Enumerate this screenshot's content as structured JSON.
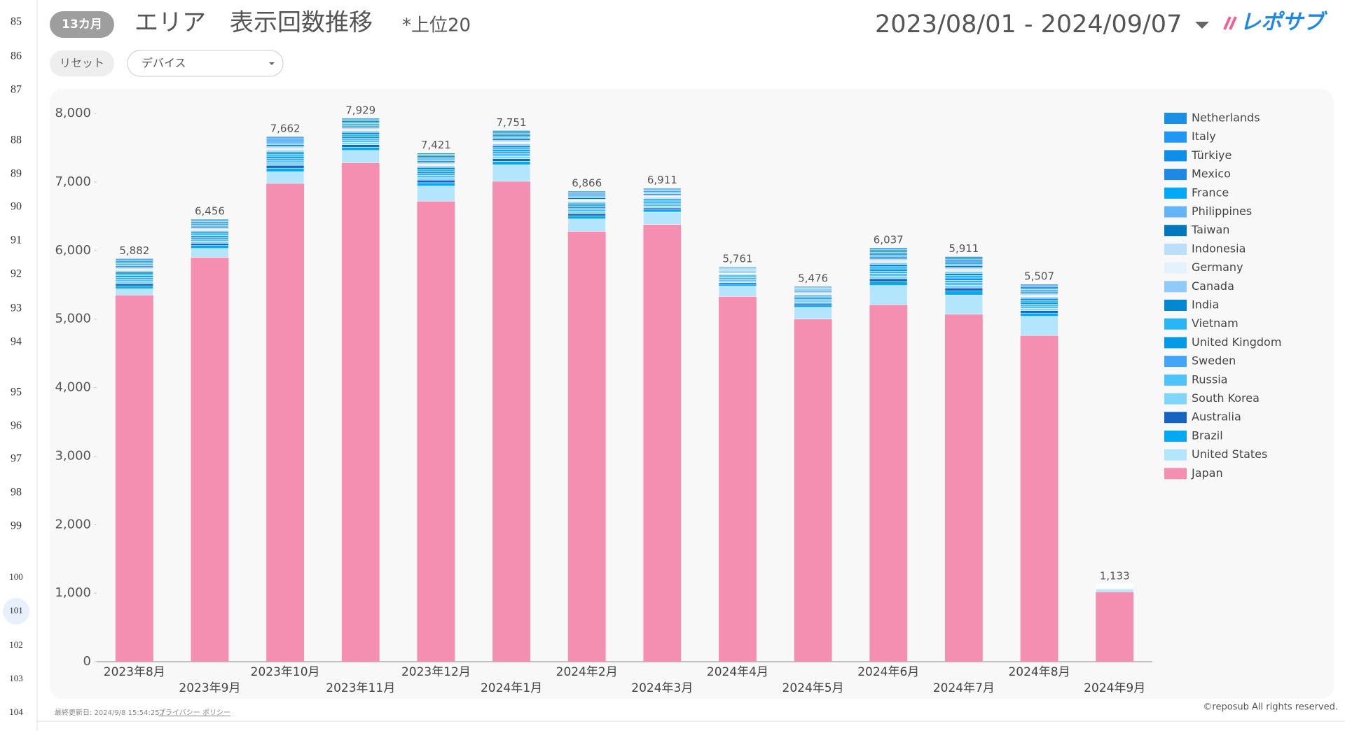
{
  "row_numbers": [
    85,
    86,
    87,
    88,
    89,
    90,
    91,
    92,
    93,
    94,
    95,
    96,
    97,
    98,
    99,
    100,
    101,
    102,
    103,
    104
  ],
  "header": {
    "period": "13カ月",
    "title": "エリア　表示回数推移",
    "note": "*上位20",
    "date_range": "2023/08/01 - 2024/09/07",
    "logo": "レポサブ"
  },
  "controls": {
    "reset": "リセット",
    "device_filter": "デバイス"
  },
  "footer": {
    "last_updated": "最終更新日: 2024/9/8 15:54:25 |",
    "privacy": "プライバシー ポリシー",
    "copyright": "©reposub All rights reserved."
  },
  "chart_data": {
    "type": "stacked_bar",
    "categories": [
      "2023年8月",
      "2023年9月",
      "2023年10月",
      "2023年11月",
      "2023年12月",
      "2024年1月",
      "2024年2月",
      "2024年3月",
      "2024年4月",
      "2024年5月",
      "2024年6月",
      "2024年7月",
      "2024年8月",
      "2024年9月"
    ],
    "ylim": [
      0,
      8000
    ],
    "yticks": [
      0,
      {
        "value": 1000,
        "label": "1,000"
      },
      {
        "value": 2000,
        "label": "2,000"
      },
      {
        "value": 3000,
        "label": "3,000"
      },
      {
        "value": 4000,
        "label": "4,000"
      },
      {
        "value": 5000,
        "label": "5,000"
      },
      {
        "value": 6000,
        "label": "6,000"
      },
      {
        "value": 7000,
        "label": "7,000"
      },
      {
        "value": 8000,
        "label": "8,000"
      }
    ],
    "grid": false,
    "legend": "right",
    "totals": [
      5882,
      6456,
      7662,
      7929,
      7421,
      7751,
      6866,
      6911,
      5761,
      5476,
      6037,
      5911,
      5507,
      1133
    ],
    "total_labels": [
      "5,882",
      "6,456",
      "7,662",
      "7,929",
      "7,421",
      "7,751",
      "6,866",
      "6,911",
      "5,761",
      "5,476",
      "6,037",
      "5,911",
      "5,507",
      "1,133"
    ],
    "series": [
      {
        "name": "Japan",
        "color": "#f48fb1",
        "values": [
          5350,
          5900,
          6980,
          7280,
          6720,
          7010,
          6280,
          6380,
          5330,
          5000,
          5210,
          5070,
          4760,
          1020
        ]
      },
      {
        "name": "United States",
        "color": "#b3e5fc",
        "values": [
          90,
          130,
          170,
          180,
          220,
          240,
          180,
          180,
          150,
          170,
          280,
          280,
          280,
          40
        ]
      },
      {
        "name": "Brazil",
        "color": "#03a9f4",
        "values": [
          41,
          42,
          51,
          47,
          49,
          51,
          46,
          33,
          29,
          36,
          55,
          58,
          46,
          7
        ]
      },
      {
        "name": "Australia",
        "color": "#1565c0",
        "values": [
          35,
          34,
          41,
          38,
          38,
          40,
          32,
          28,
          22,
          24,
          44,
          45,
          37,
          6
        ]
      },
      {
        "name": "South Korea",
        "color": "#81d4fa",
        "values": [
          31,
          30,
          36,
          33,
          34,
          35,
          28,
          25,
          20,
          21,
          38,
          39,
          33,
          5
        ]
      },
      {
        "name": "Russia",
        "color": "#4fc3f7",
        "values": [
          31,
          30,
          36,
          33,
          34,
          35,
          28,
          25,
          20,
          21,
          38,
          39,
          33,
          5
        ]
      },
      {
        "name": "Sweden",
        "color": "#42a5f5",
        "values": [
          27,
          26,
          31,
          28,
          29,
          30,
          24,
          21,
          17,
          18,
          33,
          34,
          28,
          4
        ]
      },
      {
        "name": "United Kingdom",
        "color": "#039be5",
        "values": [
          27,
          26,
          31,
          28,
          29,
          30,
          24,
          21,
          17,
          18,
          33,
          34,
          28,
          4
        ]
      },
      {
        "name": "Vietnam",
        "color": "#29b6f6",
        "values": [
          27,
          26,
          31,
          28,
          29,
          30,
          24,
          21,
          17,
          18,
          33,
          34,
          28,
          4
        ]
      },
      {
        "name": "India",
        "color": "#0288d1",
        "values": [
          27,
          26,
          31,
          28,
          29,
          30,
          24,
          21,
          17,
          18,
          33,
          34,
          28,
          4
        ]
      },
      {
        "name": "Canada",
        "color": "#90caf9",
        "values": [
          22,
          21,
          26,
          23,
          24,
          25,
          20,
          18,
          14,
          15,
          27,
          28,
          23,
          4
        ]
      },
      {
        "name": "Germany",
        "color": "#e3f2fd",
        "values": [
          22,
          21,
          26,
          23,
          24,
          25,
          20,
          18,
          14,
          15,
          27,
          28,
          23,
          4
        ]
      },
      {
        "name": "Indonesia",
        "color": "#bbdefb",
        "values": [
          22,
          21,
          26,
          23,
          24,
          25,
          20,
          18,
          14,
          15,
          27,
          28,
          23,
          4
        ]
      },
      {
        "name": "Taiwan",
        "color": "#0277bd",
        "values": [
          22,
          21,
          26,
          23,
          24,
          25,
          20,
          18,
          14,
          15,
          27,
          28,
          23,
          4
        ]
      },
      {
        "name": "Philippines",
        "color": "#64b5f6",
        "values": [
          18,
          17,
          20,
          19,
          19,
          20,
          16,
          14,
          11,
          12,
          22,
          22,
          19,
          3
        ]
      },
      {
        "name": "France",
        "color": "#03a9f4",
        "values": [
          18,
          17,
          20,
          19,
          19,
          20,
          16,
          14,
          11,
          12,
          22,
          22,
          19,
          3
        ]
      },
      {
        "name": "Mexico",
        "color": "#1e88e5",
        "values": [
          18,
          17,
          20,
          19,
          19,
          20,
          16,
          14,
          11,
          12,
          22,
          22,
          19,
          3
        ]
      },
      {
        "name": "Türkiye",
        "color": "#0d8ee8",
        "values": [
          18,
          17,
          20,
          19,
          19,
          20,
          16,
          14,
          11,
          12,
          22,
          22,
          19,
          3
        ]
      },
      {
        "name": "Italy",
        "color": "#2196f3",
        "values": [
          18,
          17,
          20,
          19,
          19,
          20,
          16,
          14,
          11,
          12,
          22,
          22,
          19,
          3
        ]
      },
      {
        "name": "Netherlands",
        "color": "#1a8fe3",
        "values": [
          18,
          17,
          20,
          19,
          19,
          20,
          16,
          14,
          11,
          12,
          22,
          22,
          19,
          3
        ]
      }
    ]
  }
}
